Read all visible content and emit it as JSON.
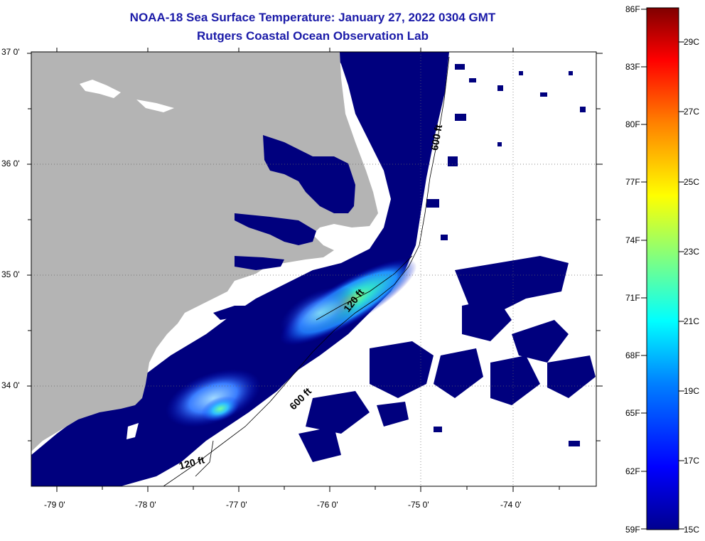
{
  "header": {
    "title": "NOAA-18 Sea Surface Temperature:  January 27, 2022 0304 GMT",
    "subtitle": "Rutgers Coastal Ocean Observation Lab"
  },
  "map": {
    "lat_labels": [
      "37 0'",
      "36 0'",
      "35 0'",
      "34 0'"
    ],
    "lon_labels": [
      "-79 0'",
      "-78 0'",
      "-77 0'",
      "-76 0'",
      "-75 0'",
      "-74 0'"
    ],
    "contour_labels": [
      "600 ft",
      "120 ft",
      "600 ft",
      "120 ft"
    ],
    "land_color": "#b4b4b4",
    "no_data_color": "#ffffff",
    "cold_water_color": "#00007e"
  },
  "colorbar": {
    "left_labels": [
      "86F",
      "83F",
      "80F",
      "77F",
      "74F",
      "71F",
      "68F",
      "65F",
      "62F",
      "59F"
    ],
    "right_labels": [
      "29C",
      "27C",
      "25C",
      "23C",
      "21C",
      "19C",
      "17C",
      "15C"
    ]
  }
}
